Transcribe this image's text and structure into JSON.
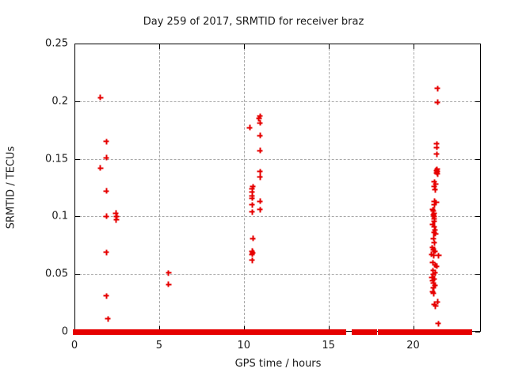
{
  "title": "Day 259 of 2017, SRMTID for receiver braz",
  "axes": {
    "xlabel": "GPS time / hours",
    "ylabel": "SRMTID / TECUs"
  },
  "colors": {
    "marker": "#e60000",
    "grid": "#a8a8a8",
    "border": "#000000",
    "background": "#ffffff",
    "text": "#1a1a1a"
  },
  "chart_data": {
    "type": "scatter",
    "title": "Day 259 of 2017, SRMTID for receiver braz",
    "xlabel": "GPS time / hours",
    "ylabel": "SRMTID / TECUs",
    "xlim": [
      0,
      24
    ],
    "ylim": [
      0,
      0.25
    ],
    "x_ticks": [
      0,
      5,
      10,
      15,
      20
    ],
    "y_ticks": [
      "0",
      "0.05",
      "0.1",
      "0.15",
      "0.2",
      "0.25"
    ],
    "grid": true,
    "legend": "none",
    "marker": "plus",
    "series": [
      {
        "name": "SRMTID",
        "color": "#e60000",
        "points": [
          [
            1.53,
            0.203
          ],
          [
            1.89,
            0.165
          ],
          [
            1.89,
            0.151
          ],
          [
            1.53,
            0.142
          ],
          [
            1.89,
            0.122
          ],
          [
            1.89,
            0.1
          ],
          [
            2.45,
            0.103
          ],
          [
            2.5,
            0.1
          ],
          [
            2.47,
            0.097
          ],
          [
            1.89,
            0.069
          ],
          [
            1.89,
            0.031
          ],
          [
            1.97,
            0.011
          ],
          [
            5.55,
            0.051
          ],
          [
            5.55,
            0.041
          ],
          [
            10.97,
            0.187
          ],
          [
            10.9,
            0.185
          ],
          [
            10.97,
            0.181
          ],
          [
            10.34,
            0.177
          ],
          [
            10.97,
            0.17
          ],
          [
            10.97,
            0.157
          ],
          [
            10.97,
            0.139
          ],
          [
            10.97,
            0.134
          ],
          [
            10.54,
            0.126
          ],
          [
            10.49,
            0.124
          ],
          [
            10.49,
            0.121
          ],
          [
            10.49,
            0.118
          ],
          [
            10.49,
            0.116
          ],
          [
            10.97,
            0.113
          ],
          [
            10.49,
            0.11
          ],
          [
            10.97,
            0.106
          ],
          [
            10.49,
            0.104
          ],
          [
            10.54,
            0.081
          ],
          [
            10.49,
            0.07
          ],
          [
            10.54,
            0.0685
          ],
          [
            10.49,
            0.067
          ],
          [
            10.49,
            0.062
          ],
          [
            21.44,
            0.211
          ],
          [
            21.44,
            0.199
          ],
          [
            21.4,
            0.163
          ],
          [
            21.4,
            0.16
          ],
          [
            21.4,
            0.154
          ],
          [
            21.42,
            0.141
          ],
          [
            21.36,
            0.14
          ],
          [
            21.44,
            0.139
          ],
          [
            21.4,
            0.138
          ],
          [
            21.44,
            0.137
          ],
          [
            21.24,
            0.13
          ],
          [
            21.33,
            0.128
          ],
          [
            21.24,
            0.126
          ],
          [
            21.29,
            0.123
          ],
          [
            21.24,
            0.113
          ],
          [
            21.36,
            0.112
          ],
          [
            21.24,
            0.11
          ],
          [
            21.15,
            0.106
          ],
          [
            21.2,
            0.105
          ],
          [
            21.22,
            0.103
          ],
          [
            21.17,
            0.101
          ],
          [
            21.22,
            0.1
          ],
          [
            21.24,
            0.098
          ],
          [
            21.24,
            0.096
          ],
          [
            21.15,
            0.093
          ],
          [
            21.24,
            0.091
          ],
          [
            21.29,
            0.088
          ],
          [
            21.22,
            0.086
          ],
          [
            21.33,
            0.085
          ],
          [
            21.2,
            0.081
          ],
          [
            21.26,
            0.077
          ],
          [
            21.13,
            0.073
          ],
          [
            21.2,
            0.071
          ],
          [
            21.29,
            0.07
          ],
          [
            21.09,
            0.067
          ],
          [
            21.22,
            0.066
          ],
          [
            21.51,
            0.066
          ],
          [
            21.15,
            0.06
          ],
          [
            21.29,
            0.058
          ],
          [
            21.4,
            0.057
          ],
          [
            21.17,
            0.053
          ],
          [
            21.29,
            0.051
          ],
          [
            21.17,
            0.05
          ],
          [
            21.11,
            0.047
          ],
          [
            21.26,
            0.046
          ],
          [
            21.15,
            0.044
          ],
          [
            21.2,
            0.042
          ],
          [
            21.29,
            0.04
          ],
          [
            21.2,
            0.038
          ],
          [
            21.15,
            0.035
          ],
          [
            21.2,
            0.033
          ],
          [
            21.44,
            0.026
          ],
          [
            21.24,
            0.024
          ],
          [
            21.33,
            0.022
          ],
          [
            21.49,
            0.007
          ]
        ]
      }
    ],
    "zero_line_segments": [
      [
        0.05,
        0.65
      ],
      [
        0.72,
        0.85
      ],
      [
        0.97,
        3.0
      ],
      [
        3.08,
        3.2
      ],
      [
        3.28,
        3.8
      ],
      [
        3.9,
        4.03
      ],
      [
        4.3,
        4.65
      ],
      [
        4.74,
        4.93
      ],
      [
        5.08,
        7.1
      ],
      [
        7.2,
        7.7
      ],
      [
        7.83,
        8.5
      ],
      [
        8.64,
        9.15
      ],
      [
        9.2,
        9.76
      ],
      [
        9.83,
        9.92
      ],
      [
        10.0,
        10.1
      ],
      [
        10.2,
        10.3
      ],
      [
        10.38,
        10.7
      ],
      [
        10.77,
        11.63
      ],
      [
        11.75,
        12.5
      ],
      [
        12.69,
        12.8
      ],
      [
        12.9,
        13.0
      ],
      [
        13.1,
        14.6
      ],
      [
        14.71,
        14.9
      ],
      [
        15.0,
        15.09
      ],
      [
        15.18,
        15.24
      ],
      [
        15.34,
        15.44
      ],
      [
        15.55,
        15.9
      ],
      [
        16.55,
        17.3
      ],
      [
        17.42,
        17.54
      ],
      [
        17.64,
        17.73
      ],
      [
        18.09,
        18.79
      ],
      [
        18.89,
        18.98
      ],
      [
        19.08,
        19.29
      ],
      [
        19.39,
        19.65
      ],
      [
        19.76,
        19.96
      ],
      [
        20.1,
        20.66
      ],
      [
        20.81,
        21.29
      ],
      [
        21.41,
        22.22
      ],
      [
        22.35,
        22.84
      ],
      [
        22.97,
        23.34
      ]
    ]
  }
}
